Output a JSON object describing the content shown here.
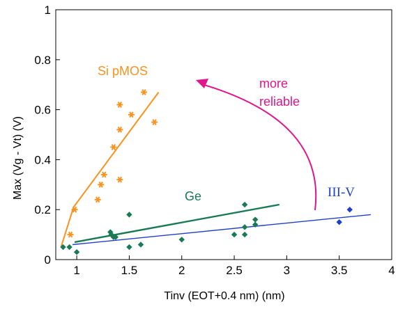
{
  "chart_data": {
    "type": "scatter",
    "title": "",
    "xlabel": "Tinv (EOT+0.4 nm) (nm)",
    "ylabel": "Max (Vg - Vt) (V)",
    "xlim": [
      0.8,
      4
    ],
    "ylim": [
      0,
      1
    ],
    "x_ticks": [
      "1",
      "1.5",
      "2",
      "2.5",
      "3",
      "3.5",
      "4"
    ],
    "x_tick_values": [
      1,
      1.5,
      2,
      2.5,
      3,
      3.5,
      4
    ],
    "y_ticks": [
      "0",
      "0.2",
      "0.4",
      "0.6",
      "0.8",
      "1"
    ],
    "y_tick_values": [
      0,
      0.2,
      0.4,
      0.6,
      0.8,
      1
    ],
    "grid": false,
    "series": [
      {
        "name": "Si pMOS",
        "color": "#f7931e",
        "marker": "asterisk",
        "points": [
          [
            0.94,
            0.1
          ],
          [
            0.98,
            0.2
          ],
          [
            1.2,
            0.24
          ],
          [
            1.23,
            0.3
          ],
          [
            1.26,
            0.34
          ],
          [
            1.35,
            0.45
          ],
          [
            1.41,
            0.32
          ],
          [
            1.41,
            0.52
          ],
          [
            1.41,
            0.62
          ],
          [
            1.52,
            0.58
          ],
          [
            1.64,
            0.67
          ],
          [
            1.74,
            0.55
          ]
        ],
        "fit": [
          [
            0.85,
            0.05
          ],
          [
            0.97,
            0.21
          ],
          [
            1.78,
            0.67
          ]
        ]
      },
      {
        "name": "Ge",
        "color": "#1a7a55",
        "marker": "diamond",
        "points": [
          [
            0.87,
            0.05
          ],
          [
            0.93,
            0.05
          ],
          [
            1.0,
            0.03
          ],
          [
            1.32,
            0.11
          ],
          [
            1.33,
            0.1
          ],
          [
            1.35,
            0.09
          ],
          [
            1.37,
            0.09
          ],
          [
            1.5,
            0.18
          ],
          [
            1.5,
            0.05
          ],
          [
            1.61,
            0.06
          ],
          [
            2.0,
            0.08
          ],
          [
            2.5,
            0.1
          ],
          [
            2.6,
            0.22
          ],
          [
            2.6,
            0.13
          ],
          [
            2.6,
            0.1
          ],
          [
            2.7,
            0.14
          ],
          [
            2.7,
            0.16
          ]
        ],
        "fit": [
          [
            0.98,
            0.07
          ],
          [
            2.93,
            0.22
          ]
        ]
      },
      {
        "name": "III-V",
        "color": "#1f3fc9",
        "marker": "diamond",
        "points": [
          [
            3.5,
            0.15
          ],
          [
            3.6,
            0.2
          ]
        ],
        "fit": [
          [
            0.96,
            0.06
          ],
          [
            3.8,
            0.18
          ]
        ]
      }
    ],
    "annotations": [
      {
        "text_lines": [
          "more",
          "reliable"
        ],
        "color": "#e0168a"
      }
    ]
  }
}
